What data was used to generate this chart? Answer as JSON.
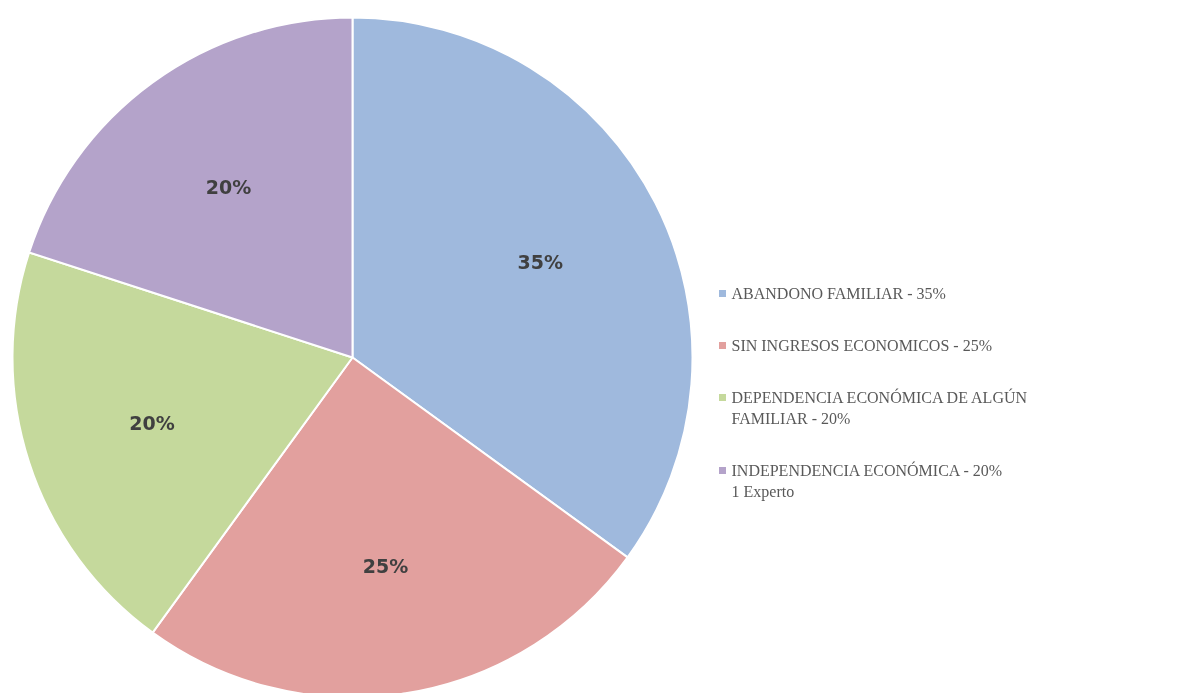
{
  "chart_data": {
    "type": "pie",
    "categories": [
      "ABANDONO FAMILIAR - 35%",
      "SIN INGRESOS ECONOMICOS - 25%",
      "DEPENDENCIA ECONÓMICA DE ALGÚN FAMILIAR - 20%",
      "INDEPENDENCIA ECONÓMICA - 20%"
    ],
    "values": [
      35,
      25,
      20,
      20
    ],
    "colors": [
      "#9fb9dd",
      "#e2a09e",
      "#c5d99c",
      "#b4a3ca"
    ],
    "value_labels": [
      "35%",
      "25%",
      "20%",
      "20%"
    ],
    "legend": "right",
    "annotations": [
      "1 Experto"
    ]
  }
}
